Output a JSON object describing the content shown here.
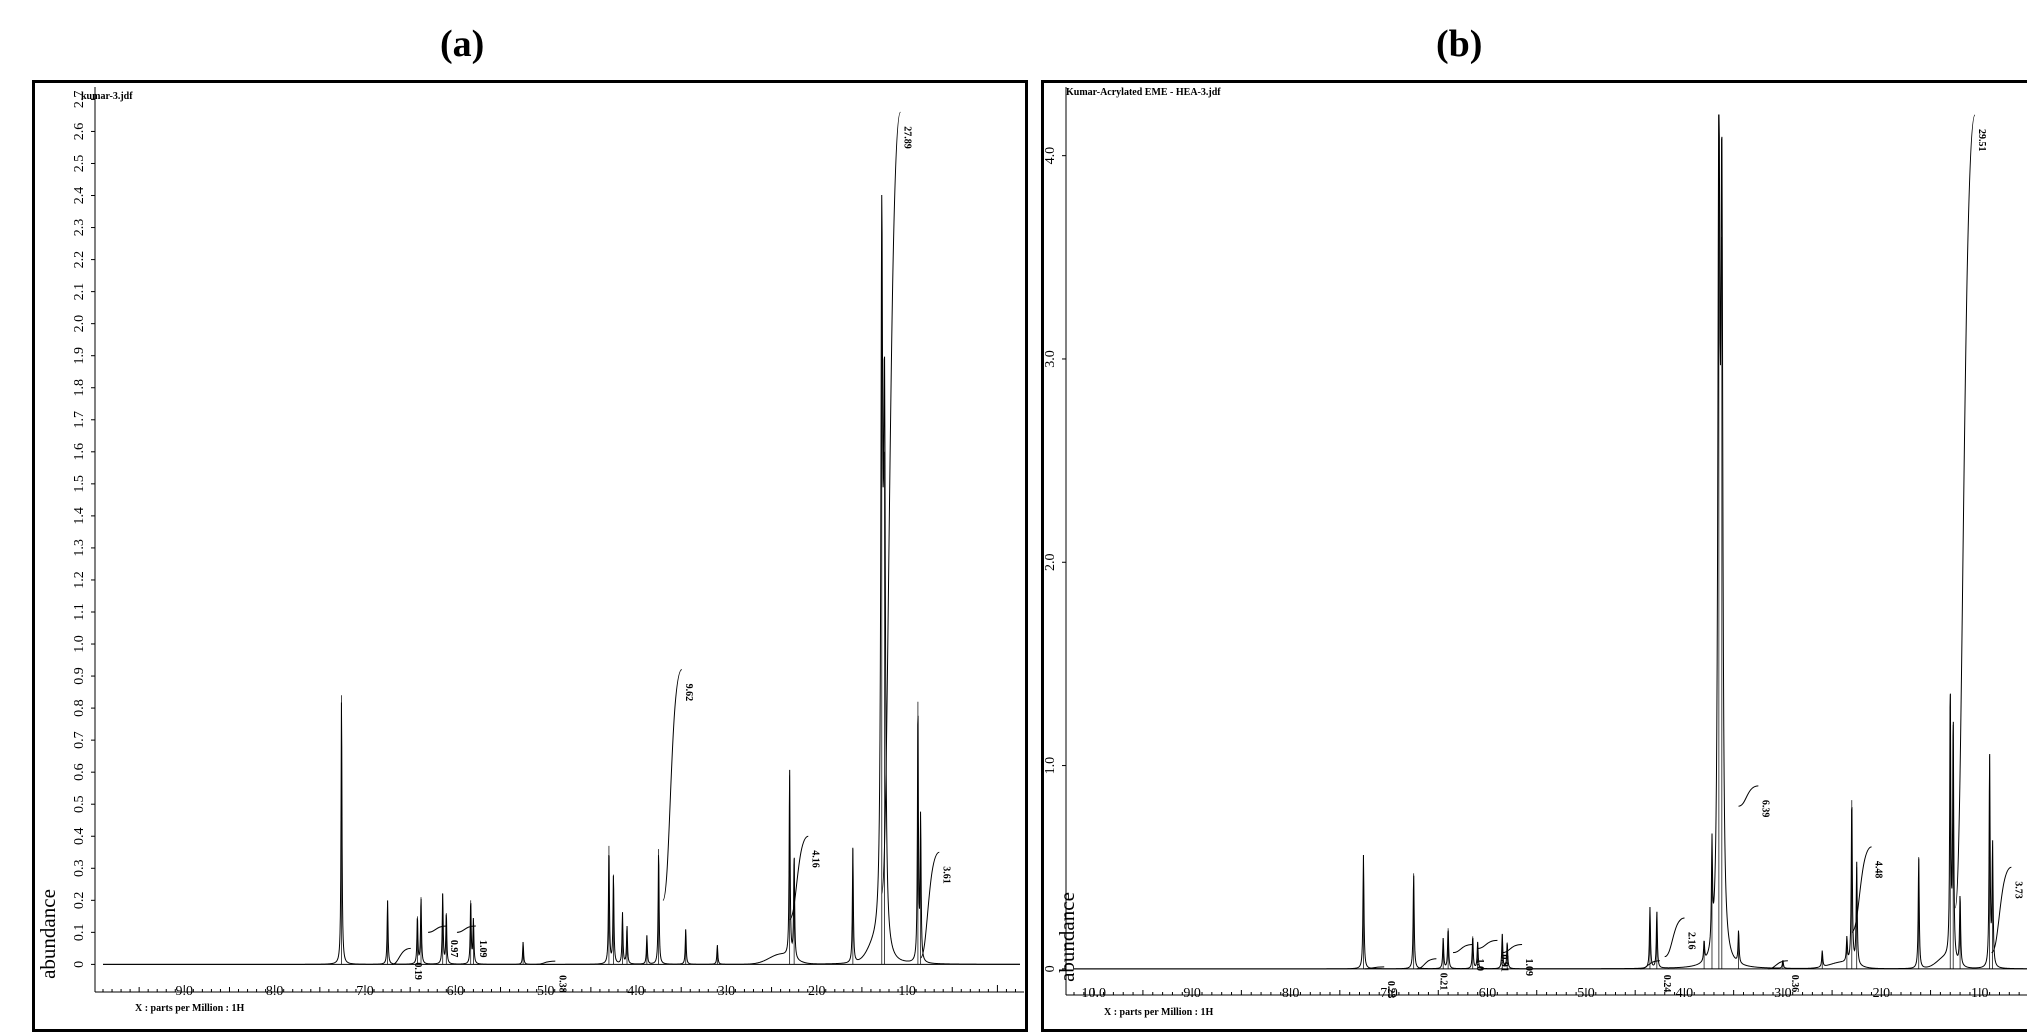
{
  "panels": {
    "a": {
      "caption": "(a)"
    },
    "b": {
      "caption": "(b)"
    }
  },
  "chart_data": [
    {
      "type": "line",
      "panel": "a",
      "file_label": "kumar-3.jdf",
      "ylabel": "abundance",
      "xlabel": "X : parts per Million : 1H",
      "x_reversed": true,
      "xlim": [
        9.9,
        -0.25
      ],
      "ylim": [
        -0.03,
        2.72
      ],
      "x_ticks": [
        "9.0",
        "8.0",
        "7.0",
        "6.0",
        "5.0",
        "4.0",
        "3.0",
        "2.0",
        "1.0"
      ],
      "y_ticks": [
        "0",
        "0.1",
        "0.2",
        "0.3",
        "0.4",
        "0.5",
        "0.6",
        "0.7",
        "0.8",
        "0.9",
        "1.0",
        "1.1",
        "1.2",
        "1.3",
        "1.4",
        "1.5",
        "1.6",
        "1.7",
        "1.8",
        "1.9",
        "2.0",
        "2.1",
        "2.2",
        "2.3",
        "2.4",
        "2.5",
        "2.6",
        "2.7"
      ],
      "peaks": [
        {
          "x": 7.26,
          "y": 0.84
        },
        {
          "x": 6.75,
          "y": 0.2
        },
        {
          "x": 6.42,
          "y": 0.15
        },
        {
          "x": 6.38,
          "y": 0.21
        },
        {
          "x": 6.14,
          "y": 0.22
        },
        {
          "x": 6.1,
          "y": 0.16
        },
        {
          "x": 5.83,
          "y": 0.2
        },
        {
          "x": 5.8,
          "y": 0.14
        },
        {
          "x": 5.25,
          "y": 0.07
        },
        {
          "x": 4.3,
          "y": 0.37
        },
        {
          "x": 4.25,
          "y": 0.28
        },
        {
          "x": 4.15,
          "y": 0.16
        },
        {
          "x": 4.1,
          "y": 0.12
        },
        {
          "x": 3.88,
          "y": 0.09
        },
        {
          "x": 3.75,
          "y": 0.36
        },
        {
          "x": 3.45,
          "y": 0.11
        },
        {
          "x": 3.1,
          "y": 0.06
        },
        {
          "x": 2.3,
          "y": 0.59
        },
        {
          "x": 2.25,
          "y": 0.33
        },
        {
          "x": 1.6,
          "y": 0.36
        },
        {
          "x": 1.28,
          "y": 2.15
        },
        {
          "x": 1.25,
          "y": 1.6
        },
        {
          "x": 0.88,
          "y": 0.82
        },
        {
          "x": 0.85,
          "y": 0.45
        }
      ],
      "integrals": [
        {
          "label": "0.19",
          "x": 6.6,
          "y_start": 0.0,
          "y_end": 0.05
        },
        {
          "label": "0.97",
          "x": 6.2,
          "y_start": 0.1,
          "y_end": 0.12
        },
        {
          "label": "1.09",
          "x": 5.88,
          "y_start": 0.1,
          "y_end": 0.12
        },
        {
          "label": "0.38",
          "x": 5.0,
          "y_start": 0.0,
          "y_end": 0.01
        },
        {
          "label": "9.62",
          "x": 3.6,
          "y_start": 0.2,
          "y_end": 0.92
        },
        {
          "label": "4.16",
          "x": 2.2,
          "y_start": 0.14,
          "y_end": 0.4
        },
        {
          "label": "27.89",
          "x": 1.18,
          "y_start": 0.22,
          "y_end": 2.66
        },
        {
          "label": "3.61",
          "x": 0.75,
          "y_start": 0.02,
          "y_end": 0.35
        }
      ]
    },
    {
      "type": "line",
      "panel": "b",
      "file_label": "Kumar-Acrylated EME - HEA-3.jdf",
      "ylabel": "abundance",
      "xlabel": "X : parts per Million : 1H",
      "x_reversed": true,
      "xlim": [
        10.2,
        0.5
      ],
      "ylim": [
        -0.04,
        4.2
      ],
      "x_ticks": [
        "10.0",
        "9.0",
        "8.0",
        "7.0",
        "6.0",
        "5.0",
        "4.0",
        "3.0",
        "2.0",
        "1.0"
      ],
      "y_ticks": [
        "0",
        "1.0",
        "2.0",
        "3.0",
        "4.0"
      ],
      "peaks": [
        {
          "x": 7.26,
          "y": 0.56
        },
        {
          "x": 6.75,
          "y": 0.47
        },
        {
          "x": 6.45,
          "y": 0.15
        },
        {
          "x": 6.4,
          "y": 0.2
        },
        {
          "x": 6.15,
          "y": 0.16
        },
        {
          "x": 6.1,
          "y": 0.13
        },
        {
          "x": 5.85,
          "y": 0.17
        },
        {
          "x": 5.8,
          "y": 0.13
        },
        {
          "x": 4.35,
          "y": 0.3
        },
        {
          "x": 4.28,
          "y": 0.28
        },
        {
          "x": 3.8,
          "y": 0.1
        },
        {
          "x": 3.72,
          "y": 0.5
        },
        {
          "x": 3.65,
          "y": 4.0
        },
        {
          "x": 3.62,
          "y": 3.6
        },
        {
          "x": 3.45,
          "y": 0.16
        },
        {
          "x": 3.0,
          "y": 0.04
        },
        {
          "x": 2.6,
          "y": 0.08
        },
        {
          "x": 2.35,
          "y": 0.12
        },
        {
          "x": 2.3,
          "y": 0.83
        },
        {
          "x": 2.25,
          "y": 0.5
        },
        {
          "x": 1.62,
          "y": 0.55
        },
        {
          "x": 1.3,
          "y": 1.35
        },
        {
          "x": 1.27,
          "y": 1.2
        },
        {
          "x": 1.2,
          "y": 0.35
        },
        {
          "x": 0.9,
          "y": 1.05
        },
        {
          "x": 0.87,
          "y": 0.6
        }
      ],
      "integrals": [
        {
          "label": "0.23",
          "x": 7.15,
          "y_start": 0.0,
          "y_end": 0.01
        },
        {
          "label": "0.21",
          "x": 6.62,
          "y_start": 0.0,
          "y_end": 0.05
        },
        {
          "label": "1.0",
          "x": 6.25,
          "y_start": 0.08,
          "y_end": 0.12
        },
        {
          "label": "0.91",
          "x": 6.0,
          "y_start": 0.1,
          "y_end": 0.14
        },
        {
          "label": "1.09",
          "x": 5.75,
          "y_start": 0.08,
          "y_end": 0.12
        },
        {
          "label": "0.24",
          "x": 4.35,
          "y_start": 0.0,
          "y_end": 0.04
        },
        {
          "label": "2.16",
          "x": 4.1,
          "y_start": 0.06,
          "y_end": 0.25
        },
        {
          "label": "0.36",
          "x": 3.05,
          "y_start": 0.0,
          "y_end": 0.04
        },
        {
          "label": "6.39",
          "x": 3.35,
          "y_start": 0.8,
          "y_end": 0.9
        },
        {
          "label": "4.48",
          "x": 2.2,
          "y_start": 0.18,
          "y_end": 0.6
        },
        {
          "label": "29.51",
          "x": 1.15,
          "y_start": 0.3,
          "y_end": 4.2
        },
        {
          "label": "3.73",
          "x": 0.78,
          "y_start": 0.08,
          "y_end": 0.5
        }
      ]
    }
  ]
}
